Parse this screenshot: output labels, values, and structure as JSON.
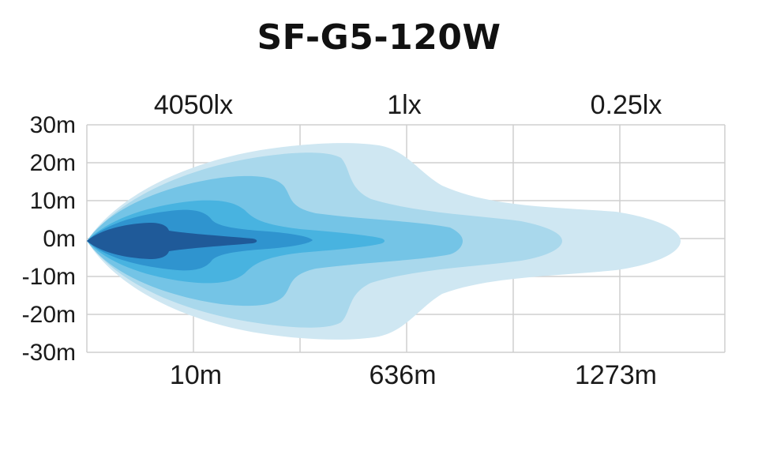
{
  "title": "SF-G5-120W",
  "colors": {
    "background": "#ffffff",
    "grid": "#cfcfcf",
    "zone_outer": "#cfe7f2",
    "zone_2": "#a9d8ec",
    "zone_3": "#74c4e6",
    "zone_4": "#48b3e0",
    "zone_5": "#2f94cf",
    "zone_inner": "#1f5a99"
  },
  "chart_data": {
    "type": "area",
    "title": "SF-G5-120W",
    "y_ticks": [
      "30m",
      "20m",
      "10m",
      "0m",
      "-10m",
      "-20m",
      "-30m"
    ],
    "y_values": [
      30,
      20,
      10,
      0,
      -10,
      -20,
      -30
    ],
    "ylim": [
      -30,
      30
    ],
    "top_labels": [
      "4050lx",
      "1lx",
      "0.25lx"
    ],
    "bottom_labels": [
      "10m",
      "636m",
      "1273m"
    ],
    "grid": true,
    "zones": [
      {
        "level": 1,
        "reach": "outermost",
        "max_half_width_m": 25
      },
      {
        "level": 2,
        "max_half_width_m": 22
      },
      {
        "level": 3,
        "max_half_width_m": 16
      },
      {
        "level": 4,
        "max_half_width_m": 9
      },
      {
        "level": 5,
        "max_half_width_m": 8
      },
      {
        "level": 6,
        "reach": "innermost",
        "max_half_width_m": 4
      }
    ]
  }
}
